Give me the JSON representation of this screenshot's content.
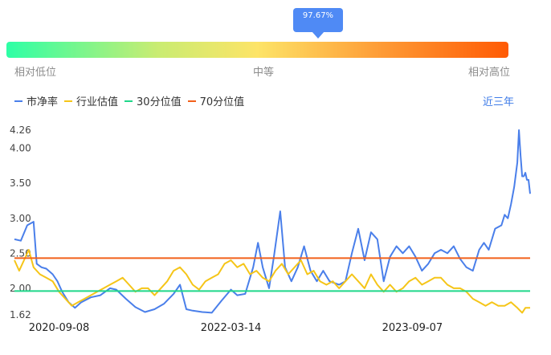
{
  "gauge": {
    "tooltip": "97.67%",
    "percentile": 97.67,
    "label_low": "相对低位",
    "label_mid": "中等",
    "label_high": "相对高位",
    "colors": [
      "#2dffa6",
      "#fde467",
      "#ff5a04"
    ]
  },
  "legend": {
    "items": [
      {
        "label": "市净率",
        "color": "#4a7fea"
      },
      {
        "label": "行业估值",
        "color": "#f5c518"
      },
      {
        "label": "30分位值",
        "color": "#1fd78a"
      },
      {
        "label": "70分位值",
        "color": "#f2601a"
      }
    ]
  },
  "range_selector": "近三年",
  "chart_data": {
    "type": "line",
    "y_ticks": [
      "1.62",
      "2.00",
      "2.50",
      "3.00",
      "3.50",
      "4.00",
      "4.26"
    ],
    "ylim": [
      1.62,
      4.26
    ],
    "x_ticks": [
      "2020-09-08",
      "2022-03-14",
      "2023-09-07"
    ],
    "x_ticks_index": [
      28,
      136,
      250
    ],
    "x_count": 320,
    "reference_lines": [
      {
        "name": "30分位值",
        "value": 1.96,
        "color": "#1fd78a"
      },
      {
        "name": "70分位值",
        "value": 2.43,
        "color": "#f2601a"
      }
    ],
    "series": [
      {
        "name": "市净率",
        "color": "#4a7fea",
        "points": [
          [
            0,
            2.7
          ],
          [
            4,
            2.68
          ],
          [
            8,
            2.9
          ],
          [
            12,
            2.95
          ],
          [
            14,
            2.35
          ],
          [
            17,
            2.3
          ],
          [
            20,
            2.28
          ],
          [
            24,
            2.2
          ],
          [
            27,
            2.1
          ],
          [
            30,
            1.95
          ],
          [
            34,
            1.8
          ],
          [
            38,
            1.72
          ],
          [
            42,
            1.8
          ],
          [
            48,
            1.87
          ],
          [
            54,
            1.9
          ],
          [
            60,
            2.0
          ],
          [
            64,
            1.98
          ],
          [
            70,
            1.85
          ],
          [
            76,
            1.73
          ],
          [
            82,
            1.66
          ],
          [
            88,
            1.7
          ],
          [
            94,
            1.78
          ],
          [
            100,
            1.92
          ],
          [
            104,
            2.05
          ],
          [
            108,
            1.7
          ],
          [
            112,
            1.68
          ],
          [
            118,
            1.66
          ],
          [
            124,
            1.65
          ],
          [
            130,
            1.82
          ],
          [
            136,
            1.98
          ],
          [
            140,
            1.9
          ],
          [
            145,
            1.92
          ],
          [
            150,
            2.3
          ],
          [
            153,
            2.65
          ],
          [
            156,
            2.3
          ],
          [
            160,
            2.0
          ],
          [
            163,
            2.45
          ],
          [
            167,
            3.1
          ],
          [
            170,
            2.3
          ],
          [
            174,
            2.1
          ],
          [
            178,
            2.3
          ],
          [
            182,
            2.6
          ],
          [
            186,
            2.25
          ],
          [
            190,
            2.1
          ],
          [
            194,
            2.25
          ],
          [
            198,
            2.1
          ],
          [
            204,
            2.05
          ],
          [
            208,
            2.1
          ],
          [
            212,
            2.5
          ],
          [
            216,
            2.85
          ],
          [
            220,
            2.4
          ],
          [
            224,
            2.8
          ],
          [
            228,
            2.7
          ],
          [
            232,
            2.1
          ],
          [
            236,
            2.45
          ],
          [
            240,
            2.6
          ],
          [
            244,
            2.5
          ],
          [
            248,
            2.6
          ],
          [
            252,
            2.45
          ],
          [
            256,
            2.25
          ],
          [
            260,
            2.35
          ],
          [
            264,
            2.5
          ],
          [
            268,
            2.55
          ],
          [
            272,
            2.5
          ],
          [
            276,
            2.6
          ],
          [
            280,
            2.42
          ],
          [
            284,
            2.3
          ],
          [
            288,
            2.25
          ],
          [
            292,
            2.55
          ],
          [
            295,
            2.65
          ],
          [
            298,
            2.55
          ],
          [
            302,
            2.85
          ],
          [
            306,
            2.9
          ],
          [
            308,
            3.05
          ],
          [
            310,
            3.0
          ],
          [
            312,
            3.2
          ],
          [
            314,
            3.45
          ],
          [
            316,
            3.8
          ],
          [
            317,
            4.26
          ],
          [
            318,
            3.9
          ],
          [
            319,
            3.6
          ],
          [
            320,
            3.6
          ],
          [
            321,
            3.65
          ],
          [
            322,
            3.55
          ],
          [
            323,
            3.55
          ],
          [
            324,
            3.35
          ]
        ]
      },
      {
        "name": "行业估值",
        "color": "#f5c518",
        "points": [
          [
            0,
            2.4
          ],
          [
            3,
            2.25
          ],
          [
            6,
            2.4
          ],
          [
            9,
            2.55
          ],
          [
            12,
            2.3
          ],
          [
            16,
            2.2
          ],
          [
            20,
            2.15
          ],
          [
            24,
            2.1
          ],
          [
            28,
            1.95
          ],
          [
            32,
            1.85
          ],
          [
            36,
            1.75
          ],
          [
            40,
            1.8
          ],
          [
            44,
            1.85
          ],
          [
            48,
            1.9
          ],
          [
            52,
            1.95
          ],
          [
            56,
            2.0
          ],
          [
            60,
            2.05
          ],
          [
            64,
            2.1
          ],
          [
            68,
            2.15
          ],
          [
            72,
            2.05
          ],
          [
            76,
            1.95
          ],
          [
            80,
            2.0
          ],
          [
            84,
            2.0
          ],
          [
            88,
            1.9
          ],
          [
            92,
            2.0
          ],
          [
            96,
            2.1
          ],
          [
            100,
            2.25
          ],
          [
            104,
            2.3
          ],
          [
            108,
            2.2
          ],
          [
            112,
            2.05
          ],
          [
            116,
            1.98
          ],
          [
            120,
            2.1
          ],
          [
            124,
            2.15
          ],
          [
            128,
            2.2
          ],
          [
            132,
            2.35
          ],
          [
            136,
            2.4
          ],
          [
            140,
            2.3
          ],
          [
            144,
            2.35
          ],
          [
            148,
            2.2
          ],
          [
            152,
            2.25
          ],
          [
            156,
            2.15
          ],
          [
            160,
            2.1
          ],
          [
            164,
            2.25
          ],
          [
            168,
            2.35
          ],
          [
            172,
            2.2
          ],
          [
            176,
            2.3
          ],
          [
            180,
            2.4
          ],
          [
            184,
            2.2
          ],
          [
            188,
            2.25
          ],
          [
            192,
            2.1
          ],
          [
            196,
            2.05
          ],
          [
            200,
            2.1
          ],
          [
            204,
            2.0
          ],
          [
            208,
            2.1
          ],
          [
            212,
            2.2
          ],
          [
            216,
            2.1
          ],
          [
            220,
            2.0
          ],
          [
            224,
            2.2
          ],
          [
            228,
            2.05
          ],
          [
            232,
            1.95
          ],
          [
            236,
            2.05
          ],
          [
            240,
            1.95
          ],
          [
            244,
            2.0
          ],
          [
            248,
            2.1
          ],
          [
            252,
            2.15
          ],
          [
            256,
            2.05
          ],
          [
            260,
            2.1
          ],
          [
            264,
            2.15
          ],
          [
            268,
            2.15
          ],
          [
            272,
            2.05
          ],
          [
            276,
            2.0
          ],
          [
            280,
            2.0
          ],
          [
            284,
            1.95
          ],
          [
            288,
            1.85
          ],
          [
            292,
            1.8
          ],
          [
            296,
            1.75
          ],
          [
            300,
            1.8
          ],
          [
            304,
            1.75
          ],
          [
            308,
            1.75
          ],
          [
            312,
            1.8
          ],
          [
            316,
            1.72
          ],
          [
            319,
            1.65
          ],
          [
            321,
            1.72
          ],
          [
            324,
            1.72
          ]
        ]
      }
    ]
  }
}
